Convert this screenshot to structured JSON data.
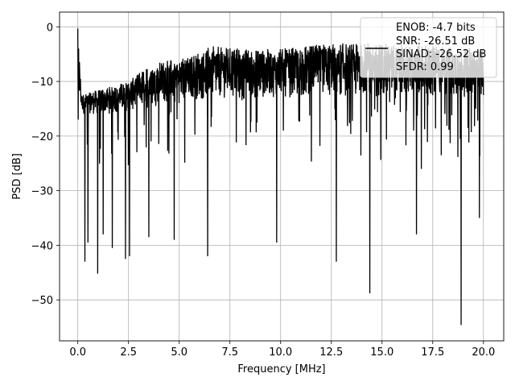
{
  "chart_data": {
    "type": "line",
    "xlabel": "Frequency [MHz]",
    "ylabel": "PSD [dB]",
    "xlim": [
      -0.9,
      21.0
    ],
    "ylim": [
      -57.5,
      2.7
    ],
    "xticks": [
      0.0,
      2.5,
      5.0,
      7.5,
      10.0,
      12.5,
      15.0,
      17.5,
      20.0
    ],
    "xtick_labels": [
      "0.0",
      "2.5",
      "5.0",
      "7.5",
      "10.0",
      "12.5",
      "15.0",
      "17.5",
      "20.0"
    ],
    "yticks": [
      0,
      -10,
      -20,
      -30,
      -40,
      -50
    ],
    "ytick_labels": [
      "0",
      "−10",
      "−20",
      "−30",
      "−40",
      "−50"
    ],
    "grid": true,
    "legend_position": "top-right",
    "legend_text": [
      "ENOB: -4.7 bits",
      "SNR: -26.51 dB",
      "SINAD: -26.52 dB",
      "SFDR: 0.99"
    ],
    "series": [
      {
        "color": "#000000",
        "x_range": [
          0.0,
          20.0
        ],
        "points": 2000,
        "peak": [
          0.0,
          -0.3
        ],
        "upper_envelope": [
          [
            0.0,
            -0.3
          ],
          [
            0.2,
            -12.5
          ],
          [
            1.0,
            -11.5
          ],
          [
            2.5,
            -10.0
          ],
          [
            3.5,
            -7.0
          ],
          [
            4.5,
            -6.0
          ],
          [
            5.5,
            -5.5
          ],
          [
            6.5,
            -3.5
          ],
          [
            8.0,
            -4.0
          ],
          [
            10.0,
            -4.0
          ],
          [
            12.5,
            -3.0
          ],
          [
            15.0,
            -3.0
          ],
          [
            17.5,
            -3.5
          ],
          [
            20.0,
            -4.0
          ]
        ],
        "center": [
          [
            0.0,
            -14.0
          ],
          [
            0.3,
            -16.0
          ],
          [
            1.5,
            -16.0
          ],
          [
            4.0,
            -14.5
          ],
          [
            6.0,
            -13.5
          ],
          [
            10.0,
            -13.0
          ],
          [
            15.0,
            -13.0
          ],
          [
            20.0,
            -13.0
          ]
        ],
        "spikes": [
          [
            0.35,
            -43.0
          ],
          [
            0.5,
            -39.5
          ],
          [
            0.98,
            -45.2
          ],
          [
            1.25,
            -38.0
          ],
          [
            1.7,
            -40.5
          ],
          [
            2.35,
            -42.5
          ],
          [
            2.55,
            -42.0
          ],
          [
            3.5,
            -38.5
          ],
          [
            4.75,
            -39.0
          ],
          [
            6.4,
            -42.0
          ],
          [
            9.8,
            -39.5
          ],
          [
            12.75,
            -43.0
          ],
          [
            14.4,
            -48.8
          ],
          [
            16.7,
            -38.0
          ],
          [
            18.9,
            -54.6
          ],
          [
            19.8,
            -35.0
          ]
        ]
      }
    ]
  }
}
